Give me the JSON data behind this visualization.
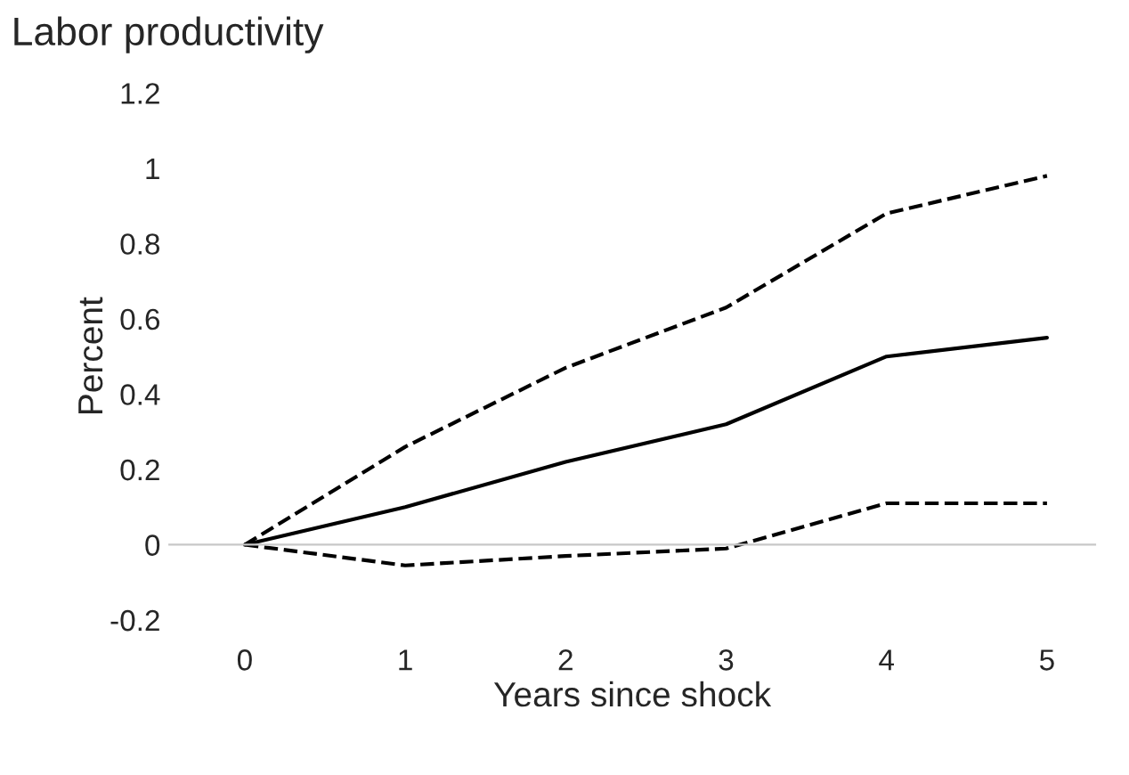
{
  "chart_data": {
    "type": "line",
    "title": "Labor productivity",
    "xlabel": "Years since shock",
    "ylabel": "Percent",
    "categories": [
      "0",
      "1",
      "2",
      "3",
      "4",
      "5"
    ],
    "series": [
      {
        "color": "#000000",
        "line_style": "solid",
        "values": [
          0,
          0.1,
          0.22,
          0.32,
          0.5,
          0.55
        ]
      },
      {
        "color": "#000000",
        "line_style": "dashed",
        "values": [
          0,
          0.26,
          0.47,
          0.63,
          0.88,
          0.98
        ]
      },
      {
        "color": "#000000",
        "line_style": "dashed",
        "values": [
          0,
          -0.055,
          -0.03,
          -0.01,
          0.11,
          0.11
        ]
      }
    ],
    "ylim": [
      -0.2,
      1.2
    ],
    "yticks": [
      -0.2,
      0,
      0.2,
      0.4,
      0.6,
      0.8,
      1,
      1.2
    ],
    "legend": false,
    "marker": "none"
  }
}
